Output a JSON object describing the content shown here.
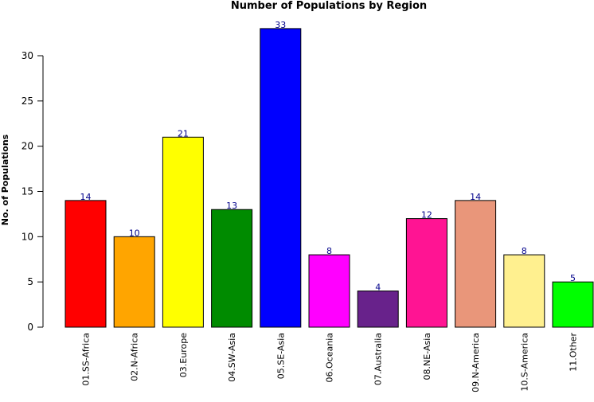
{
  "chart_data": {
    "type": "bar",
    "title": "Number of Populations by Region",
    "xlabel": "",
    "ylabel": "No. of Populations",
    "categories": [
      "01.SS-Africa",
      "02.N-Africa",
      "03.Europe",
      "04.SW-Asia",
      "05.SE-Asia",
      "06.Oceania",
      "07.Australia",
      "08.NE-Asia",
      "09.N-America",
      "10.S-America",
      "11.Other"
    ],
    "values": [
      14,
      10,
      21,
      13,
      33,
      8,
      4,
      12,
      14,
      8,
      5
    ],
    "colors": [
      "#ff0000",
      "#ffa500",
      "#ffff00",
      "#008b00",
      "#0000ff",
      "#ff00ff",
      "#68228b",
      "#ff1493",
      "#e9967a",
      "#fff08f",
      "#00ff00"
    ],
    "data_label_color": "#00008b",
    "yticks": [
      0,
      5,
      10,
      15,
      20,
      25,
      30
    ],
    "ylim": [
      0,
      33
    ],
    "grid": false,
    "legend": "none"
  }
}
